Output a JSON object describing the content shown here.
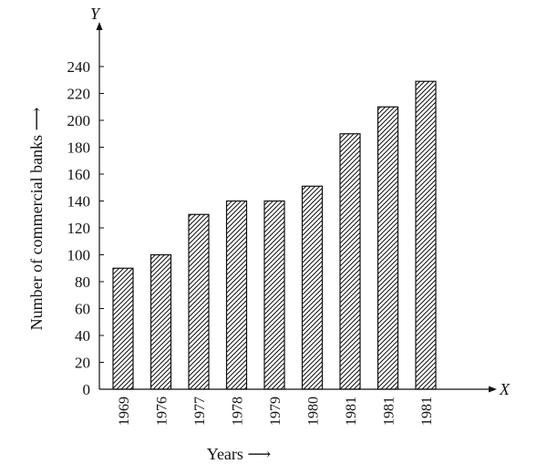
{
  "colors": {
    "background": "#ffffff",
    "ink": "#111111"
  },
  "chart_data": {
    "type": "bar",
    "categories": [
      "1969",
      "1976",
      "1977",
      "1978",
      "1979",
      "1980",
      "1981",
      "1981",
      "1981"
    ],
    "values": [
      90,
      100,
      130,
      140,
      140,
      151,
      190,
      210,
      229
    ],
    "ylim": [
      0,
      240
    ],
    "yticks": [
      0,
      20,
      40,
      60,
      80,
      100,
      120,
      140,
      160,
      180,
      200,
      220,
      240
    ],
    "xlabel": "Years ⟶",
    "ylabel": "Number of commercial banks ⟶",
    "x_axis_letter": "X",
    "y_axis_letter": "Y",
    "bar_fill": "diagonal-hatch",
    "grid": false,
    "legend": "none"
  }
}
